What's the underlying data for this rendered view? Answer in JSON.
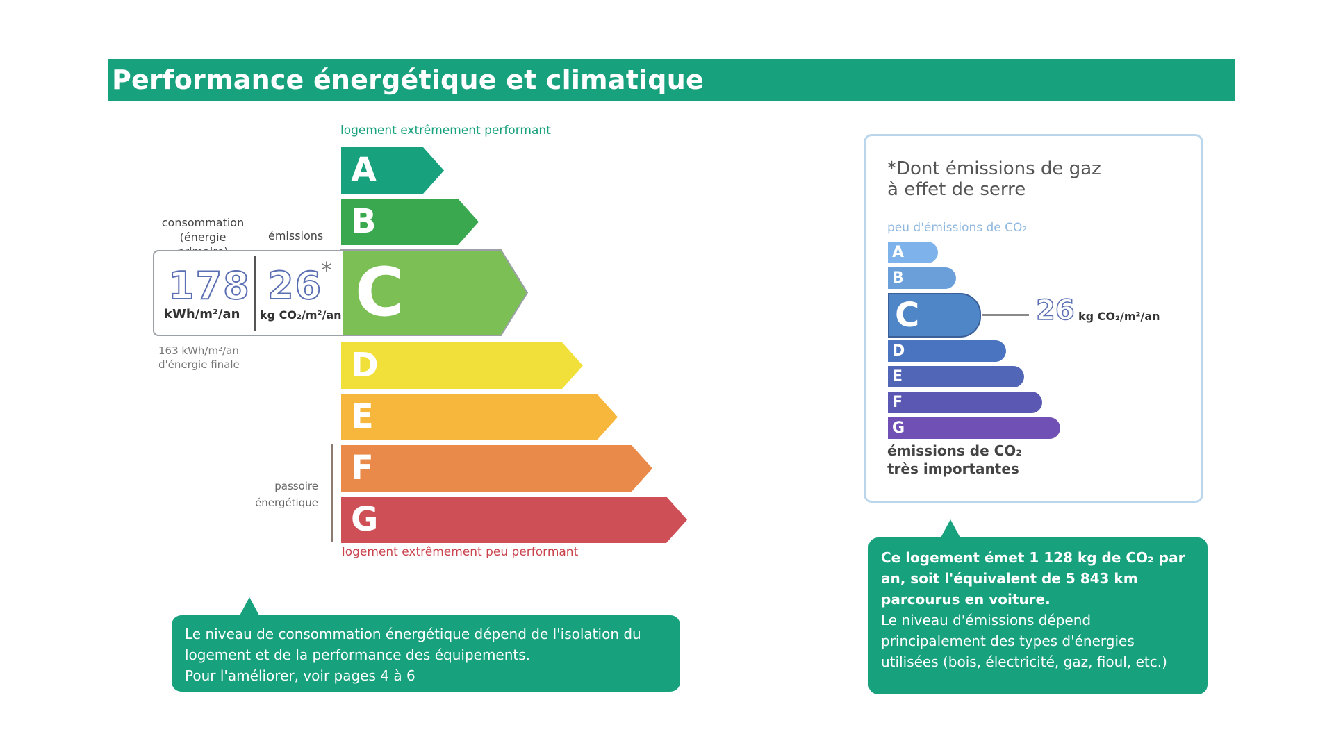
{
  "header": {
    "title": "Performance énergétique et climatique"
  },
  "dpe": {
    "top_caption": "logement extrêmement performant",
    "bottom_caption": "logement extrêmement peu performant",
    "classes": [
      {
        "letter": "A",
        "color": "#17a17d"
      },
      {
        "letter": "B",
        "color": "#3aa84f"
      },
      {
        "letter": "C",
        "color": "#7cbf55"
      },
      {
        "letter": "D",
        "color": "#f1e03a"
      },
      {
        "letter": "E",
        "color": "#f6b73c"
      },
      {
        "letter": "F",
        "color": "#ea8a4a"
      },
      {
        "letter": "G",
        "color": "#cf4f57"
      }
    ],
    "current_class": "C"
  },
  "indicator": {
    "conso_label_line1": "consommation",
    "conso_label_line2": "(énergie primaire)",
    "emissions_label": "émissions",
    "conso_value": "178",
    "conso_unit": "kWh/m²/an",
    "emissions_value": "26",
    "emissions_star": "*",
    "emissions_unit": "kg CO₂/m²/an",
    "final_line1": "163 kWh/m²/an",
    "final_line2": "d'énergie finale"
  },
  "passoire": {
    "line1": "passoire",
    "line2": "énergétique"
  },
  "callout_left": {
    "line1": "Le niveau de consommation énergétique dépend de l'isolation du",
    "line2": "logement et de la performance des équipements.",
    "line3": "Pour l'améliorer, voir pages 4 à 6"
  },
  "ges": {
    "title_line1": "*Dont émissions de gaz",
    "title_line2": "à effet de serre",
    "top_caption": "peu d'émissions de CO₂",
    "classes": [
      {
        "letter": "A",
        "color": "#7db3ea"
      },
      {
        "letter": "B",
        "color": "#6a9fd9"
      },
      {
        "letter": "C",
        "color": "#4f86c7"
      },
      {
        "letter": "D",
        "color": "#4a74c0"
      },
      {
        "letter": "E",
        "color": "#5266b8"
      },
      {
        "letter": "F",
        "color": "#5a58b2"
      },
      {
        "letter": "G",
        "color": "#7150b6"
      }
    ],
    "value": "26",
    "unit": "kg CO₂/m²/an",
    "bottom_line1": "émissions de CO₂",
    "bottom_line2": "très importantes"
  },
  "callout_right": {
    "strong_line1": "Ce logement émet 1 128 kg de CO₂ par",
    "strong_line2": "an, soit l'équivalent de 5 843 km",
    "strong_line3": "parcourus en voiture.",
    "line1": "Le niveau d'émissions dépend",
    "line2": "principalement des types d'énergies",
    "line3": "utilisées (bois, électricité, gaz, fioul, etc.)"
  }
}
